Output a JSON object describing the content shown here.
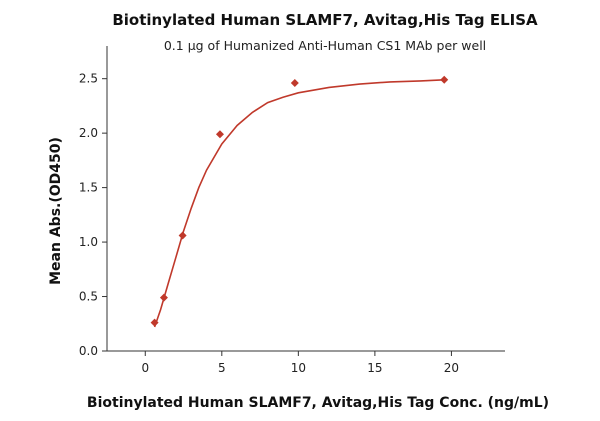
{
  "chart_data": {
    "type": "scatter",
    "title": "Biotinylated Human SLAMF7, Avitag,His Tag ELISA",
    "subtitle": "0.1 μg of Humanized Anti-Human CS1 MAb per well",
    "xlabel": "Biotinylated Human SLAMF7, Avitag,His Tag Conc. (ng/mL)",
    "ylabel": "Mean Abs.(OD450)",
    "xlim": [
      -2.5,
      23.5
    ],
    "ylim": [
      0,
      2.8
    ],
    "x_ticks": [
      0,
      5,
      10,
      15,
      20
    ],
    "y_ticks": [
      0.0,
      0.5,
      1.0,
      1.5,
      2.0,
      2.5
    ],
    "x_tick_labels": [
      "0",
      "5",
      "10",
      "15",
      "20"
    ],
    "y_tick_labels": [
      "0.0",
      "0.5",
      "1.0",
      "1.5",
      "2.0",
      "2.5"
    ],
    "grid": false,
    "legend": "none",
    "series": [
      {
        "marker": "diamond",
        "color": "#c0392b",
        "x": [
          0.61,
          1.22,
          2.44,
          4.88,
          9.77,
          19.53
        ],
        "y": [
          0.26,
          0.49,
          1.06,
          1.99,
          2.46,
          2.49
        ]
      }
    ],
    "fit_curve": {
      "color": "#c0392b",
      "x": [
        0.61,
        1.0,
        1.5,
        2.0,
        2.5,
        3.0,
        3.5,
        4.0,
        5.0,
        6.0,
        7.0,
        8.0,
        9.0,
        10.0,
        12.0,
        14.0,
        16.0,
        18.0,
        19.53
      ],
      "y": [
        0.22,
        0.38,
        0.62,
        0.86,
        1.1,
        1.31,
        1.5,
        1.66,
        1.9,
        2.07,
        2.19,
        2.28,
        2.33,
        2.37,
        2.42,
        2.45,
        2.47,
        2.48,
        2.49
      ]
    }
  }
}
